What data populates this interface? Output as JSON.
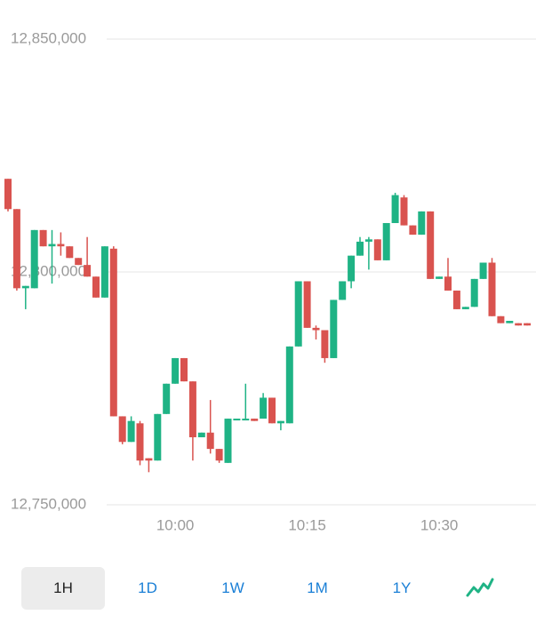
{
  "chart_data": {
    "type": "candlestick",
    "x": [
      "9:41",
      "9:42",
      "9:43",
      "9:44",
      "9:45",
      "9:46",
      "9:47",
      "9:48",
      "9:49",
      "9:50",
      "9:51",
      "9:52",
      "9:53",
      "9:54",
      "9:55",
      "9:56",
      "9:57",
      "9:58",
      "9:59",
      "10:00",
      "10:01",
      "10:02",
      "10:03",
      "10:04",
      "10:05",
      "10:06",
      "10:07",
      "10:08",
      "10:09",
      "10:10",
      "10:11",
      "10:12",
      "10:13",
      "10:14",
      "10:15",
      "10:16",
      "10:17",
      "10:18",
      "10:19",
      "10:20",
      "10:21",
      "10:22",
      "10:23",
      "10:24",
      "10:25",
      "10:26",
      "10:27",
      "10:28",
      "10:29",
      "10:30",
      "10:31",
      "10:32",
      "10:33",
      "10:34",
      "10:35",
      "10:36",
      "10:37",
      "10:38",
      "10:39",
      "10:40"
    ],
    "open": [
      12820000,
      12813500,
      12796500,
      12796500,
      12809000,
      12805500,
      12806000,
      12805500,
      12803000,
      12801500,
      12799000,
      12794500,
      12805000,
      12769000,
      12763500,
      12767500,
      12760000,
      12759500,
      12769500,
      12776000,
      12781500,
      12776500,
      12764500,
      12765500,
      12762000,
      12759000,
      12768500,
      12768500,
      12768500,
      12768500,
      12773000,
      12767500,
      12767500,
      12784000,
      12798000,
      12788000,
      12787500,
      12781500,
      12794000,
      12798000,
      12803500,
      12806500,
      12807000,
      12802500,
      12810500,
      12816000,
      12810000,
      12808000,
      12813000,
      12798500,
      12799000,
      12796000,
      12792000,
      12792500,
      12798500,
      12802000,
      12790500,
      12789000,
      12789000,
      12789000
    ],
    "high": [
      12820000,
      12813500,
      12797000,
      12809000,
      12809000,
      12809000,
      12808500,
      12805500,
      12803000,
      12807500,
      12799000,
      12805500,
      12805500,
      12769000,
      12769000,
      12768000,
      12760000,
      12769500,
      12776000,
      12781500,
      12781500,
      12776500,
      12765500,
      12772500,
      12762000,
      12768500,
      12768500,
      12776000,
      12768500,
      12774000,
      12773000,
      12768000,
      12784000,
      12798000,
      12798000,
      12788500,
      12787500,
      12794000,
      12798000,
      12803500,
      12807500,
      12807500,
      12807000,
      12810500,
      12817000,
      12816500,
      12810000,
      12813000,
      12813000,
      12799000,
      12803000,
      12796000,
      12792500,
      12798500,
      12802000,
      12803000,
      12790500,
      12789500,
      12789000,
      12789000
    ],
    "low": [
      12813000,
      12796000,
      12792000,
      12796500,
      12805500,
      12797500,
      12803500,
      12803000,
      12801500,
      12799000,
      12794500,
      12794500,
      12769000,
      12763000,
      12763500,
      12758500,
      12757000,
      12759500,
      12769500,
      12776000,
      12776500,
      12759500,
      12764500,
      12761000,
      12759000,
      12759000,
      12768500,
      12768500,
      12768000,
      12768500,
      12767500,
      12766000,
      12767500,
      12784000,
      12788000,
      12785500,
      12780500,
      12781500,
      12794000,
      12796500,
      12803500,
      12800500,
      12802500,
      12802500,
      12810500,
      12810000,
      12808000,
      12808000,
      12798500,
      12798500,
      12796000,
      12792000,
      12792000,
      12792500,
      12798500,
      12790500,
      12789000,
      12789000,
      12788500,
      12788500
    ],
    "close": [
      12813500,
      12796500,
      12797000,
      12809000,
      12805500,
      12806000,
      12805500,
      12803000,
      12801500,
      12799000,
      12794500,
      12805500,
      12769000,
      12763500,
      12768000,
      12759500,
      12759500,
      12769500,
      12776000,
      12781500,
      12776500,
      12764500,
      12765500,
      12762000,
      12759500,
      12768500,
      12768500,
      12768500,
      12768000,
      12773000,
      12767500,
      12768000,
      12784000,
      12798000,
      12788000,
      12787500,
      12781500,
      12794000,
      12798000,
      12803500,
      12806500,
      12807000,
      12802500,
      12810500,
      12816500,
      12810000,
      12808000,
      12813000,
      12798500,
      12799000,
      12796000,
      12792000,
      12792500,
      12798500,
      12802000,
      12790500,
      12789000,
      12789500,
      12788500,
      12788500
    ],
    "up_color": "#1fb385",
    "down_color": "#d9534f",
    "ylim": [
      12750000,
      12850000
    ],
    "yticks": [
      {
        "value": 12750000,
        "label": "12,750,000"
      },
      {
        "value": 12800000,
        "label": "12,800,000"
      },
      {
        "value": 12850000,
        "label": "12,850,000"
      }
    ],
    "xticks": [
      "10:00",
      "10:15",
      "10:30"
    ],
    "grid": true
  },
  "range_buttons": [
    "1H",
    "1D",
    "1W",
    "1M",
    "1Y"
  ]
}
